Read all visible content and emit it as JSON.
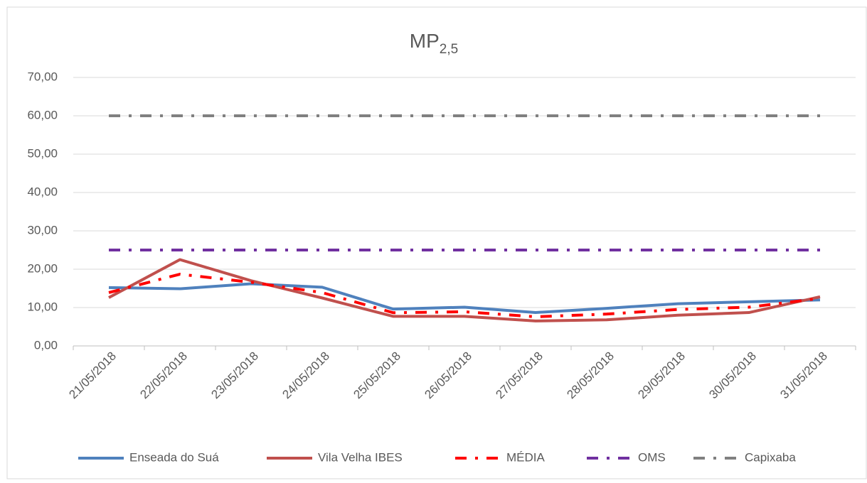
{
  "chart_data": {
    "type": "line",
    "title": "MP",
    "title_sub": "2,5",
    "categories": [
      "21/05/2018",
      "22/05/2018",
      "23/05/2018",
      "24/05/2018",
      "25/05/2018",
      "26/05/2018",
      "27/05/2018",
      "28/05/2018",
      "29/05/2018",
      "30/05/2018",
      "31/05/2018"
    ],
    "series": [
      {
        "name": "Enseada do Suá",
        "color": "#4f81bd",
        "dash": "solid",
        "values": [
          15.2,
          14.9,
          16.2,
          15.3,
          9.6,
          10.1,
          8.7,
          9.8,
          11.0,
          11.5,
          12.0
        ]
      },
      {
        "name": "Vila Velha IBES",
        "color": "#c0504d",
        "dash": "solid",
        "values": [
          12.6,
          22.5,
          17.0,
          12.5,
          7.7,
          7.7,
          6.5,
          6.8,
          8.0,
          8.7,
          12.8
        ]
      },
      {
        "name": "MÉDIA",
        "color": "#ff0000",
        "dash": "dash-dot",
        "values": [
          13.9,
          18.7,
          16.6,
          13.9,
          8.65,
          8.9,
          7.6,
          8.3,
          9.5,
          10.1,
          12.4
        ]
      },
      {
        "name": "OMS",
        "color": "#7030a0",
        "dash": "dash-dot",
        "values": [
          25,
          25,
          25,
          25,
          25,
          25,
          25,
          25,
          25,
          25,
          25
        ]
      },
      {
        "name": "Capixaba",
        "color": "#808080",
        "dash": "dash-dot",
        "values": [
          60,
          60,
          60,
          60,
          60,
          60,
          60,
          60,
          60,
          60,
          60
        ]
      }
    ],
    "ylim": [
      0,
      70
    ],
    "yticks": [
      {
        "value": 0,
        "label": "0,00"
      },
      {
        "value": 10,
        "label": "10,00"
      },
      {
        "value": 20,
        "label": "20,00"
      },
      {
        "value": 30,
        "label": "30,00"
      },
      {
        "value": 40,
        "label": "40,00"
      },
      {
        "value": 50,
        "label": "50,00"
      },
      {
        "value": 60,
        "label": "60,00"
      },
      {
        "value": 70,
        "label": "70,00"
      }
    ],
    "grid": true,
    "legend": "bottom"
  }
}
